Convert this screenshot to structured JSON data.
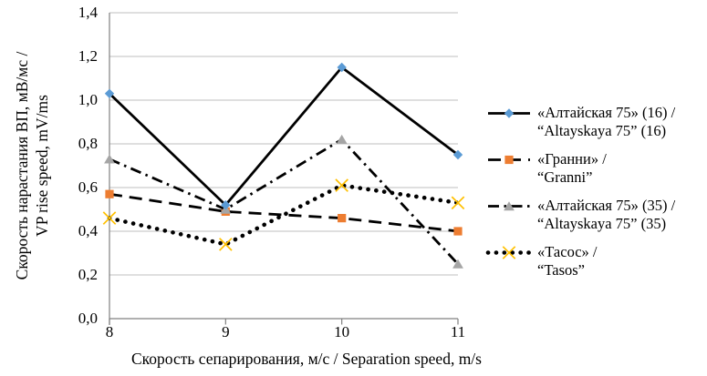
{
  "figure": {
    "background": "#ffffff",
    "text_color": "#000000",
    "gridline_color": "#bfbfbf",
    "axis_color": "#808080"
  },
  "y_axis": {
    "title_line1": "Скорость нарастания ВП, мВ/мс /",
    "title_line2": "VP rise speed, mV/ms",
    "tick_labels": [
      "1,4",
      "1,2",
      "1,0",
      "0,8",
      "0,6",
      "0,4",
      "0,2",
      "0,0"
    ]
  },
  "x_axis": {
    "title": "Скорость сепарирования, м/с / Separation speed, m/s",
    "tick_labels": [
      "8",
      "9",
      "10",
      "11"
    ]
  },
  "chart_data": {
    "type": "line",
    "x": [
      8,
      9,
      10,
      11
    ],
    "xlabel": "Скорость сепарирования, м/с / Separation speed, m/s",
    "ylabel": "Скорость нарастания ВП, мВ/мс / VP rise speed, mV/ms",
    "ylim": [
      0.0,
      1.4
    ],
    "ytick_step": 0.2,
    "grid": true,
    "legend_position": "right",
    "series": [
      {
        "name": "«Алтайская 75» (16) / “Altayskaya 75” (16)",
        "label_line1": "«Алтайская 75» (16) /",
        "label_line2": "“Altayskaya 75” (16)",
        "values": [
          1.03,
          0.52,
          1.15,
          0.75
        ],
        "line_style": "solid",
        "line_color": "#000000",
        "marker": "diamond",
        "marker_color": "#5B9BD5"
      },
      {
        "name": "«Гранни» / “Granni”",
        "label_line1": "«Гранни» /",
        "label_line2": " “Granni”",
        "values": [
          0.57,
          0.49,
          0.46,
          0.4
        ],
        "line_style": "dash",
        "line_color": "#000000",
        "marker": "square",
        "marker_color": "#ED7D31"
      },
      {
        "name": "«Алтайская 75» (35) / “Altayskaya 75” (35)",
        "label_line1": "«Алтайская 75» (35) /",
        "label_line2": "“Altayskaya 75” (35)",
        "values": [
          0.73,
          0.5,
          0.82,
          0.25
        ],
        "line_style": "dashdot",
        "line_color": "#000000",
        "marker": "triangle",
        "marker_color": "#A5A5A5"
      },
      {
        "name": "«Тасос» / “Tasos”",
        "label_line1": "«Тасос» /",
        "label_line2": " “Tasos”",
        "values": [
          0.46,
          0.34,
          0.61,
          0.53
        ],
        "line_style": "dot",
        "line_color": "#000000",
        "marker": "x",
        "marker_color": "#FFC000"
      }
    ]
  }
}
